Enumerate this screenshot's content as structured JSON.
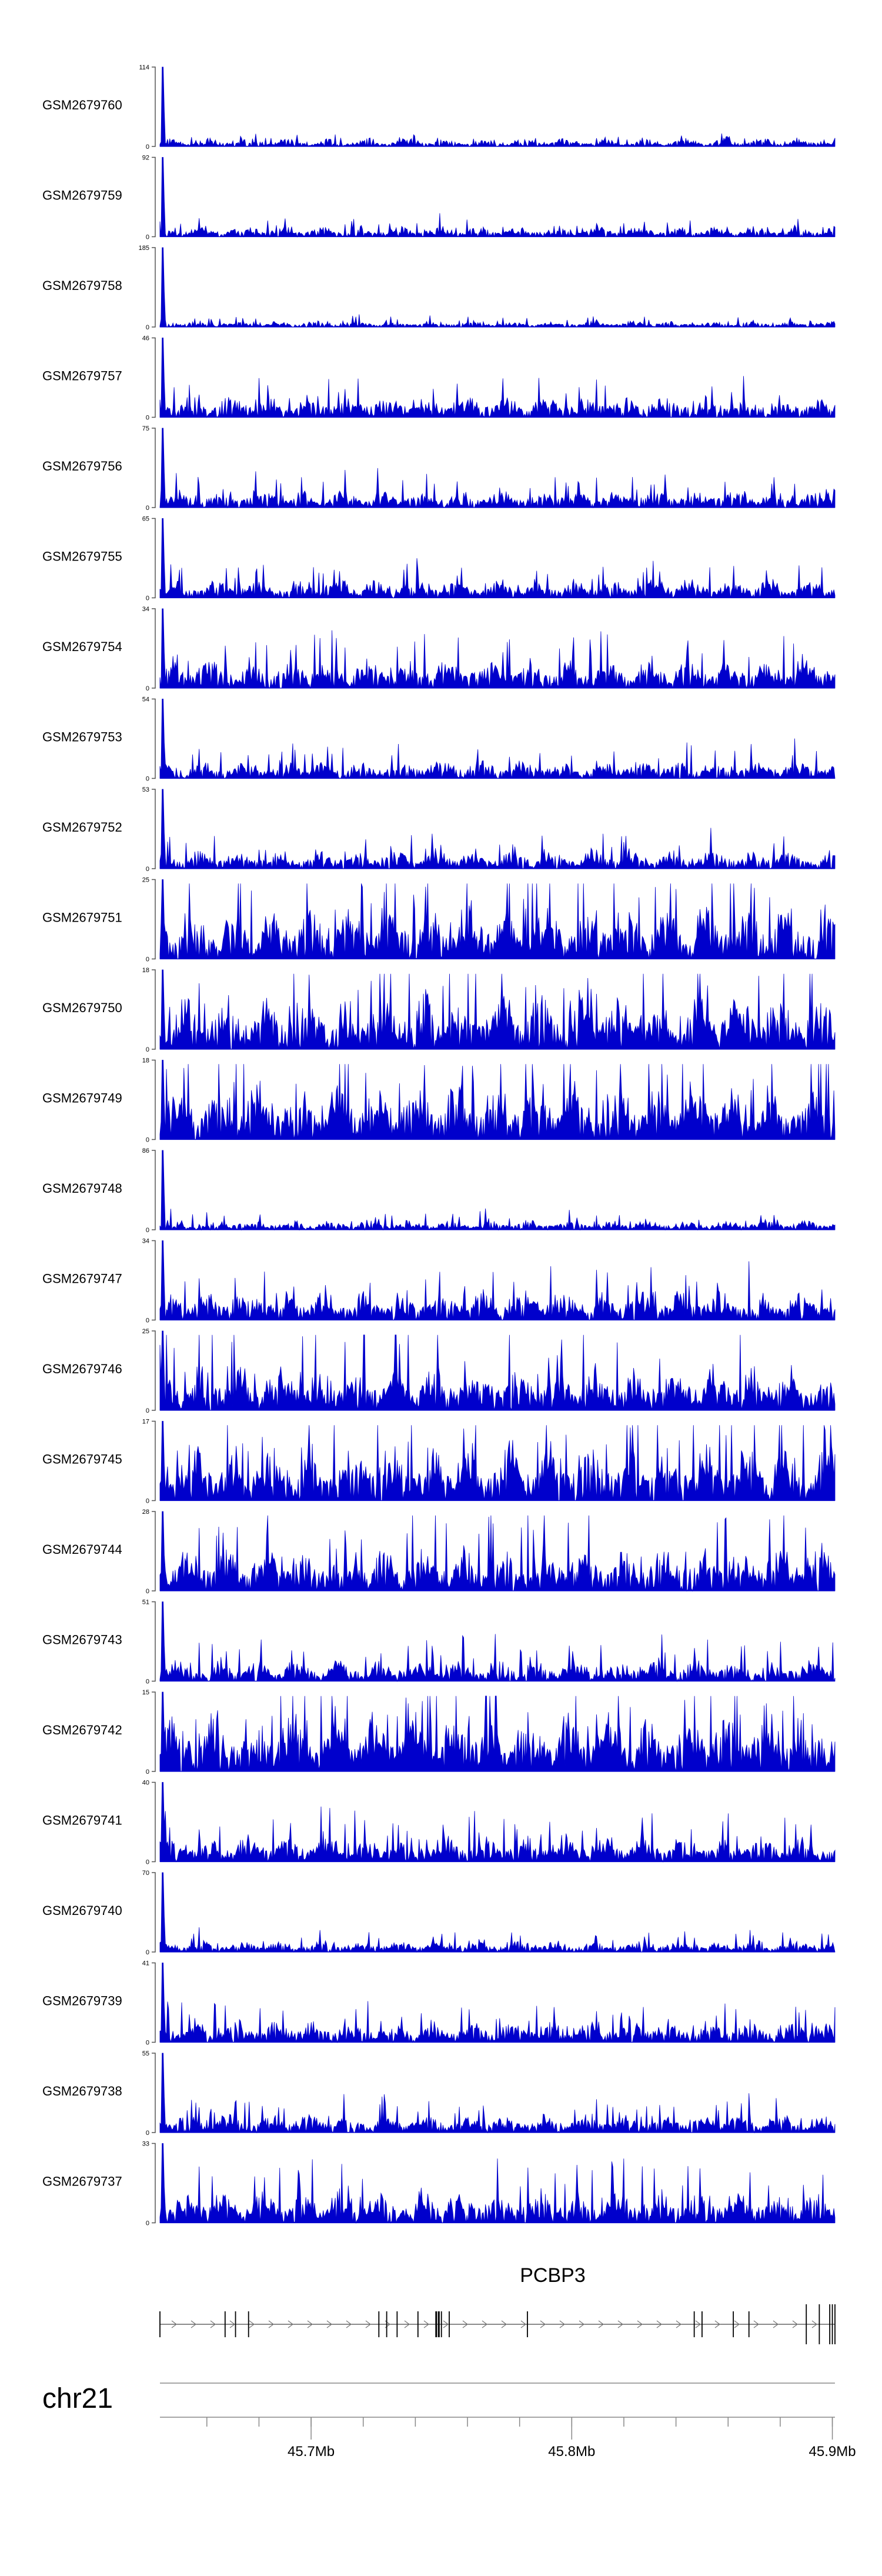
{
  "chart_data": {
    "type": "area",
    "title": "",
    "series_color": "#0000CC",
    "x_range": [
      45.642,
      45.901
    ],
    "x_unit": "Mb",
    "tracks": [
      {
        "name": "GSM2679760",
        "ymax": "114",
        "ymin": "0",
        "peak": 114,
        "level": 0.07,
        "bumps": 0.03
      },
      {
        "name": "GSM2679759",
        "ymax": "92",
        "ymin": "0",
        "peak": 92,
        "level": 0.08,
        "bumps": 0.05
      },
      {
        "name": "GSM2679758",
        "ymax": "185",
        "ymin": "0",
        "peak": 185,
        "level": 0.04,
        "bumps": 0.03
      },
      {
        "name": "GSM2679757",
        "ymax": "46",
        "ymin": "0",
        "peak": 46,
        "level": 0.15,
        "bumps": 0.12
      },
      {
        "name": "GSM2679756",
        "ymax": "75",
        "ymin": "0",
        "peak": 75,
        "level": 0.12,
        "bumps": 0.1
      },
      {
        "name": "GSM2679755",
        "ymax": "65",
        "ymin": "0",
        "peak": 65,
        "level": 0.13,
        "bumps": 0.1
      },
      {
        "name": "GSM2679754",
        "ymax": "34",
        "ymin": "0",
        "peak": 34,
        "level": 0.2,
        "bumps": 0.16
      },
      {
        "name": "GSM2679753",
        "ymax": "54",
        "ymin": "0",
        "peak": 54,
        "level": 0.12,
        "bumps": 0.1
      },
      {
        "name": "GSM2679752",
        "ymax": "53",
        "ymin": "0",
        "peak": 53,
        "level": 0.13,
        "bumps": 0.1
      },
      {
        "name": "GSM2679751",
        "ymax": "25",
        "ymin": "0",
        "peak": 25,
        "level": 0.35,
        "bumps": 0.28
      },
      {
        "name": "GSM2679750",
        "ymax": "18",
        "ymin": "0",
        "peak": 18,
        "level": 0.38,
        "bumps": 0.3
      },
      {
        "name": "GSM2679749",
        "ymax": "18",
        "ymin": "0",
        "peak": 18,
        "level": 0.4,
        "bumps": 0.3
      },
      {
        "name": "GSM2679748",
        "ymax": "86",
        "ymin": "0",
        "peak": 86,
        "level": 0.07,
        "bumps": 0.05
      },
      {
        "name": "GSM2679747",
        "ymax": "34",
        "ymin": "0",
        "peak": 34,
        "level": 0.2,
        "bumps": 0.16
      },
      {
        "name": "GSM2679746",
        "ymax": "25",
        "ymin": "0",
        "peak": 25,
        "level": 0.3,
        "bumps": 0.25
      },
      {
        "name": "GSM2679745",
        "ymax": "17",
        "ymin": "0",
        "peak": 17,
        "level": 0.4,
        "bumps": 0.3
      },
      {
        "name": "GSM2679744",
        "ymax": "28",
        "ymin": "0",
        "peak": 28,
        "level": 0.3,
        "bumps": 0.24
      },
      {
        "name": "GSM2679743",
        "ymax": "51",
        "ymin": "0",
        "peak": 51,
        "level": 0.15,
        "bumps": 0.12
      },
      {
        "name": "GSM2679742",
        "ymax": "15",
        "ymin": "0",
        "peak": 15,
        "level": 0.45,
        "bumps": 0.3
      },
      {
        "name": "GSM2679741",
        "ymax": "40",
        "ymin": "0",
        "peak": 40,
        "level": 0.18,
        "bumps": 0.14
      },
      {
        "name": "GSM2679740",
        "ymax": "70",
        "ymin": "0",
        "peak": 70,
        "level": 0.08,
        "bumps": 0.06
      },
      {
        "name": "GSM2679739",
        "ymax": "41",
        "ymin": "0",
        "peak": 41,
        "level": 0.15,
        "bumps": 0.12
      },
      {
        "name": "GSM2679738",
        "ymax": "55",
        "ymin": "0",
        "peak": 55,
        "level": 0.12,
        "bumps": 0.1
      },
      {
        "name": "GSM2679737",
        "ymax": "33",
        "ymin": "0",
        "peak": 33,
        "level": 0.22,
        "bumps": 0.18
      }
    ],
    "gene": {
      "name": "PCBP3",
      "strand": "+",
      "start": 45.642,
      "end": 45.901,
      "exons": [
        45.642,
        45.667,
        45.671,
        45.676,
        45.726,
        45.729,
        45.733,
        45.741,
        45.748,
        45.749,
        45.75,
        45.753,
        45.783,
        45.847,
        45.85,
        45.862,
        45.868,
        45.89,
        45.895,
        45.899,
        45.9,
        45.901
      ]
    },
    "axis": {
      "chromosome": "chr21",
      "minor_ticks": [
        45.66,
        45.68,
        45.7,
        45.72,
        45.74,
        45.76,
        45.78,
        45.8,
        45.82,
        45.84,
        45.86,
        45.88,
        45.9
      ],
      "labeled_ticks": [
        {
          "value": 45.7,
          "label": "45.7Mb"
        },
        {
          "value": 45.8,
          "label": "45.8Mb"
        },
        {
          "value": 45.9,
          "label": "45.9Mb"
        }
      ]
    }
  }
}
